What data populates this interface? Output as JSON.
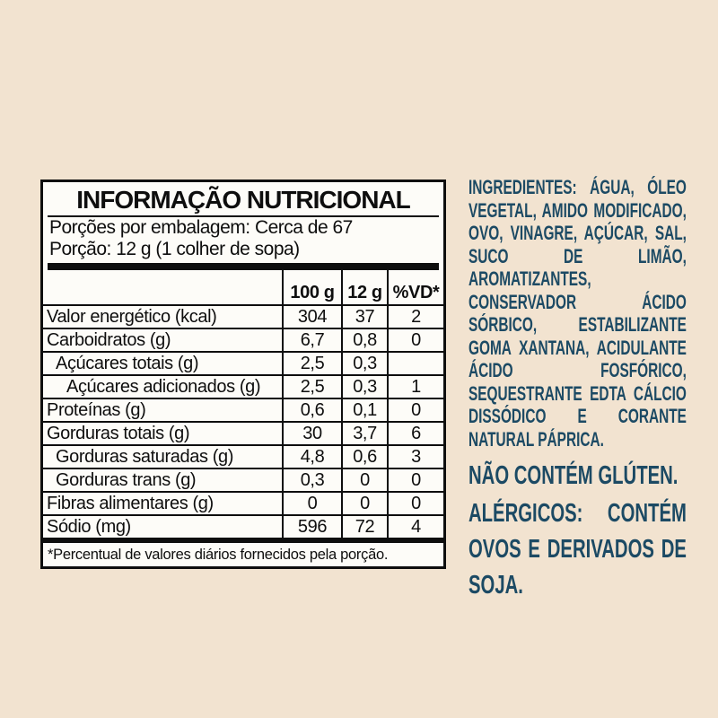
{
  "colors": {
    "background": "#f2e3d0",
    "panel_background": "#fdfcf8",
    "ink": "#0e0e0e",
    "claims_navy": "#1c4a64"
  },
  "nutrition_panel": {
    "title": "INFORMAÇÃO NUTRICIONAL",
    "servings_per_package": "Porções por embalagem: Cerca de 67",
    "serving_size": "Porção: 12 g (1 colher de sopa)",
    "columns": {
      "c1": "100 g",
      "c2": "12 g",
      "c3": "%VD*"
    },
    "rows": [
      {
        "label": "Valor energético (kcal)",
        "v100": "304",
        "v12": "37",
        "vd": "2"
      },
      {
        "label": "Carboidratos (g)",
        "v100": "6,7",
        "v12": "0,8",
        "vd": "0"
      },
      {
        "label": "Açúcares totais (g)",
        "v100": "2,5",
        "v12": "0,3",
        "vd": ""
      },
      {
        "label": "Açúcares adicionados (g)",
        "v100": "2,5",
        "v12": "0,3",
        "vd": "1"
      },
      {
        "label": "Proteínas (g)",
        "v100": "0,6",
        "v12": "0,1",
        "vd": "0"
      },
      {
        "label": "Gorduras totais (g)",
        "v100": "30",
        "v12": "3,7",
        "vd": "6"
      },
      {
        "label": "Gorduras saturadas (g)",
        "v100": "4,8",
        "v12": "0,6",
        "vd": "3"
      },
      {
        "label": "Gorduras trans (g)",
        "v100": "0,3",
        "v12": "0",
        "vd": "0"
      },
      {
        "label": "Fibras alimentares (g)",
        "v100": "0",
        "v12": "0",
        "vd": "0"
      },
      {
        "label": "Sódio (mg)",
        "v100": "596",
        "v12": "72",
        "vd": "4"
      }
    ],
    "footnote": "*Percentual de valores diários fornecidos pela porção."
  },
  "ingredients": {
    "text": "INGREDIENTES: ÁGUA, ÓLEO VEGETAL, AMIDO MODIFICADO, OVO, VINAGRE, AÇÚCAR, SAL, SUCO DE LIMÃO, AROMATIZANTES, CONSERVADOR ÁCIDO SÓRBICO, ESTABILIZANTE GOMA XANTANA, ACIDULANTE ÁCIDO FOSFÓRICO, SEQUESTRANTE EDTA CÁLCIO DISSÓDICO E CORANTE NATURAL PÁPRICA."
  },
  "claims": {
    "gluten": "NÃO CONTÉM GLÚTEN.",
    "allergens": "ALÉRGICOS: CONTÉM OVOS E DERIVADOS DE SOJA."
  }
}
